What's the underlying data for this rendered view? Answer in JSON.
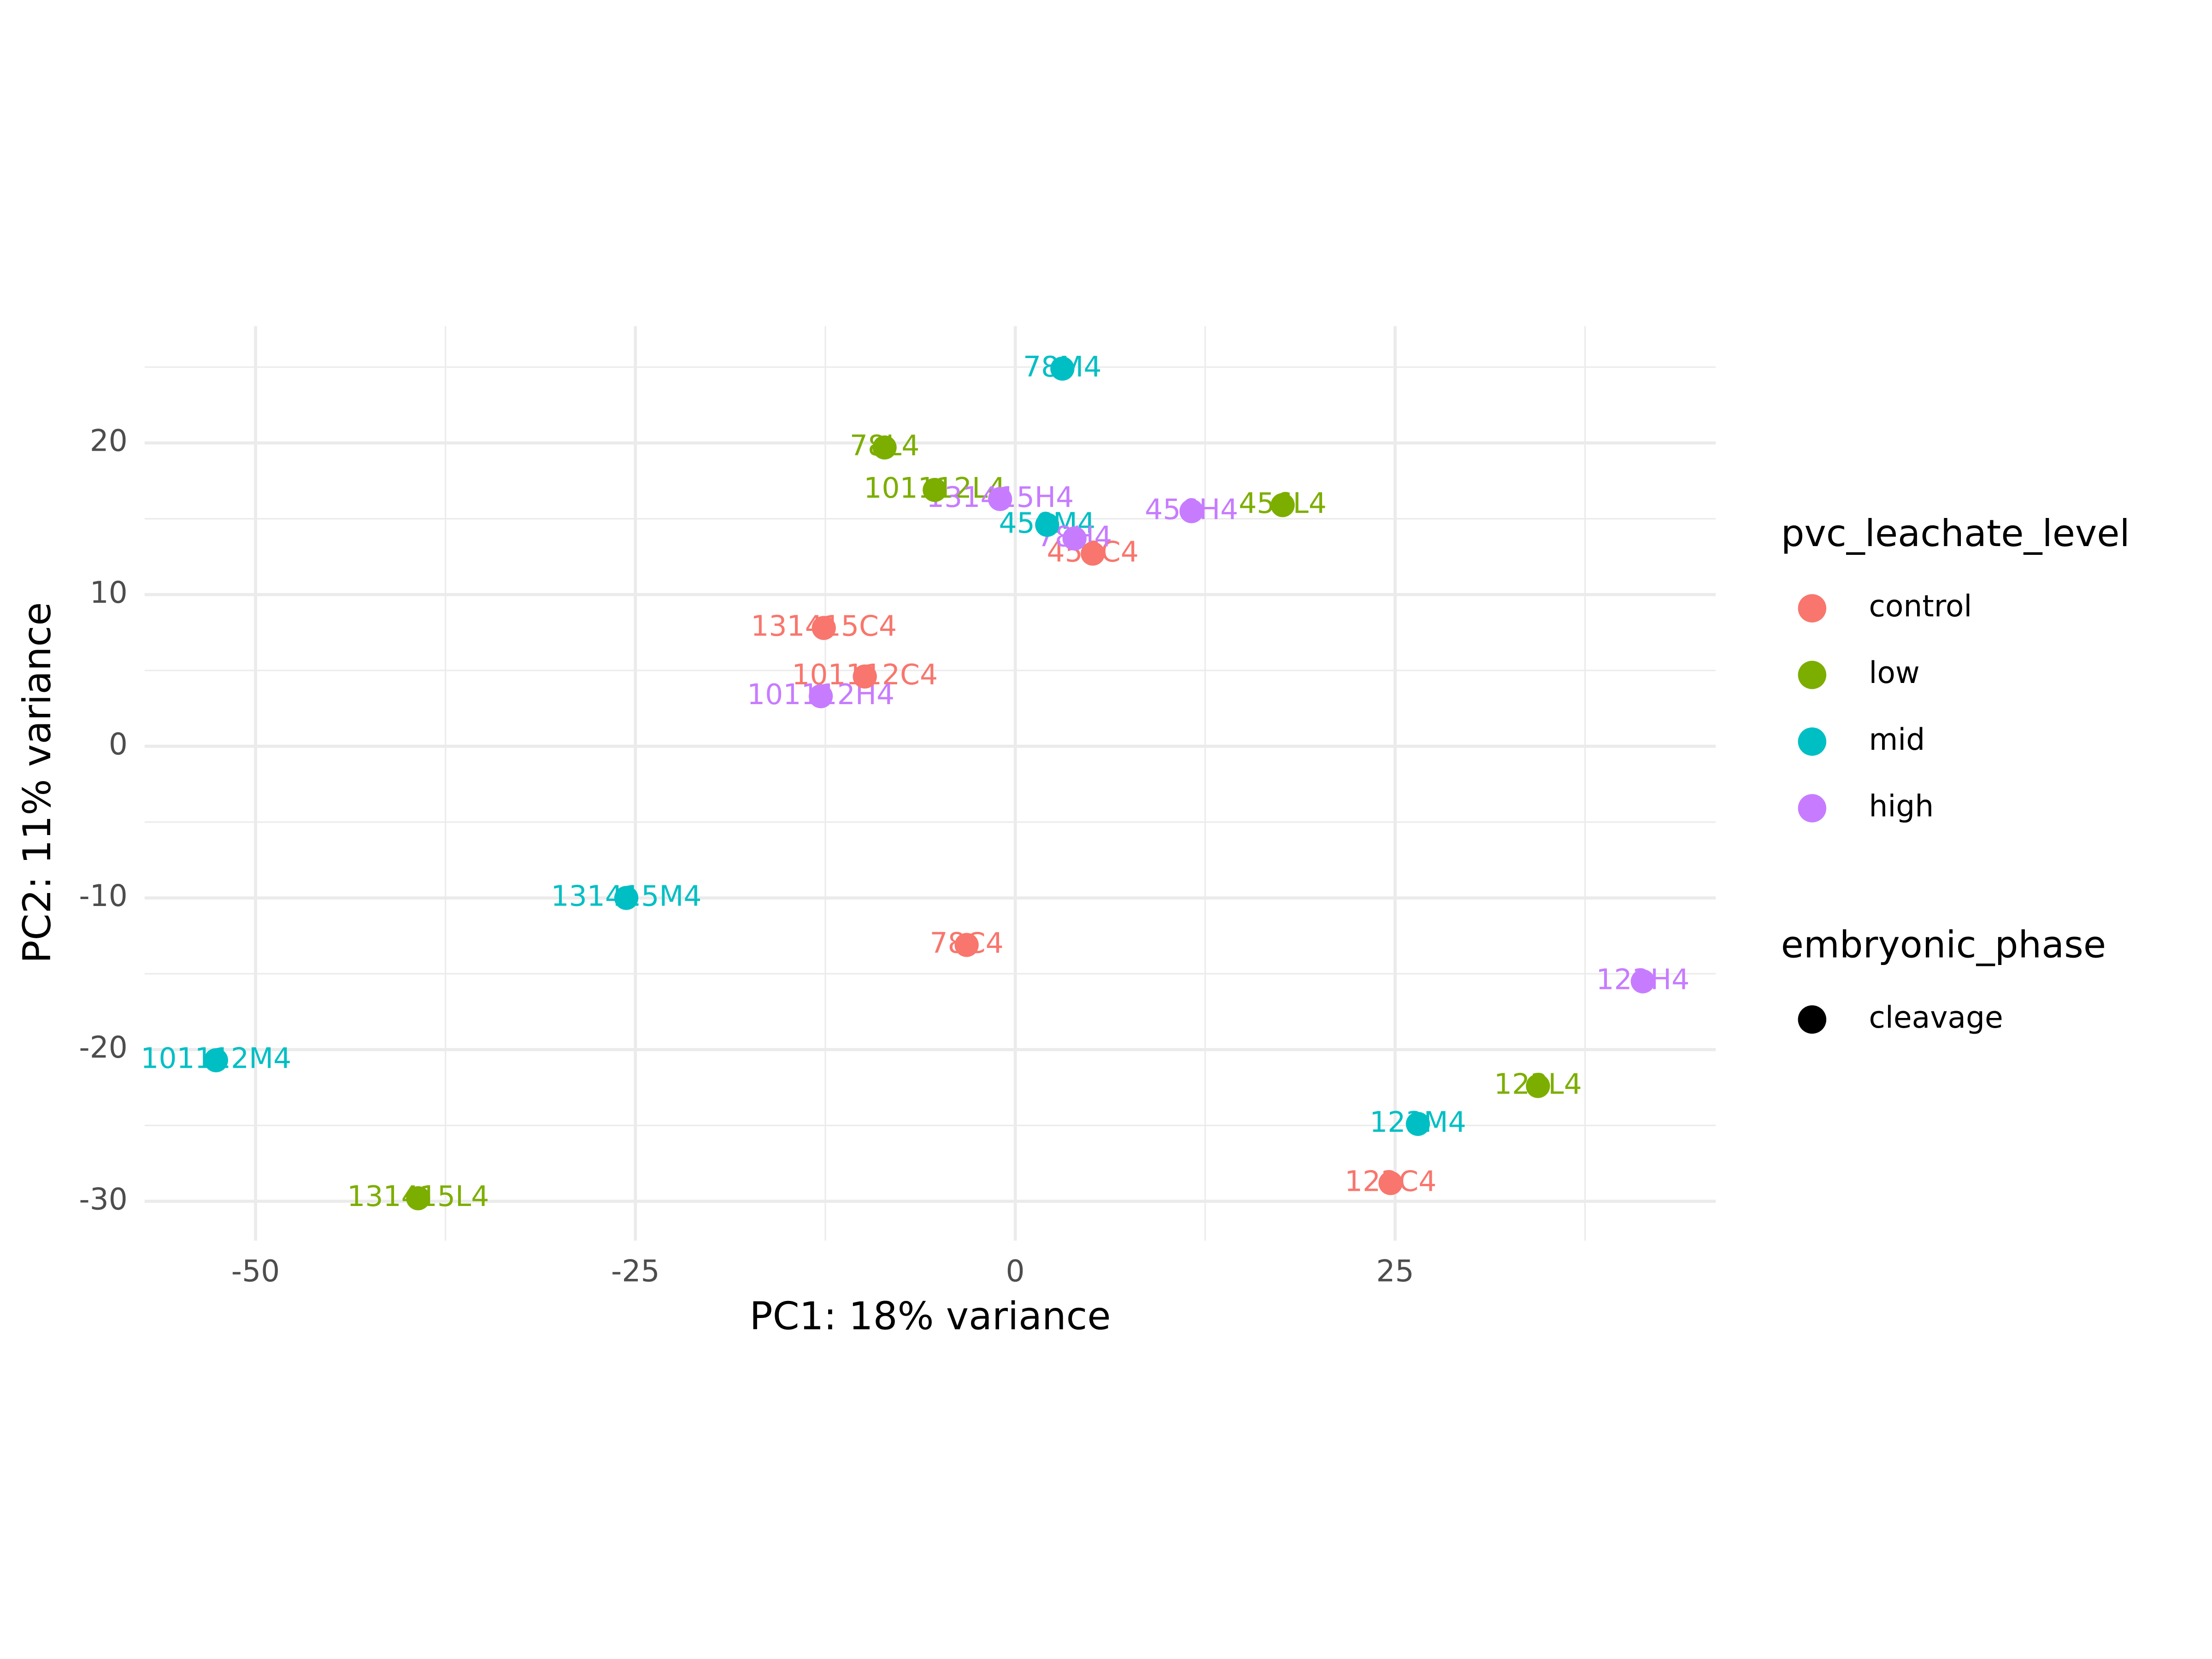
{
  "chart_data": {
    "type": "scatter",
    "x_label": "PC1: 18% variance",
    "y_label": "PC2: 11% variance",
    "xlim": [
      -57.3,
      46.1
    ],
    "ylim": [
      -32.6,
      27.7
    ],
    "xticks": [
      -50,
      -25,
      0,
      25
    ],
    "yticks": [
      -30,
      -20,
      -10,
      0,
      10,
      20
    ],
    "x_minor_grid": [
      -37.5,
      -12.5,
      12.5,
      37.5
    ],
    "y_minor_grid": [
      -25,
      -15,
      -5,
      5,
      15,
      25
    ],
    "grid": true,
    "legend_title": "pvc_leachate_level",
    "shape_legend": {
      "title": "embryonic_phase",
      "entries": [
        "cleavage"
      ],
      "color": "#000000"
    },
    "series": [
      {
        "name": "control",
        "color": "#F8766D",
        "x": [
          5.1,
          -12.6,
          -9.9,
          -3.2,
          24.7
        ],
        "values": [
          12.7,
          7.8,
          4.6,
          -13.1,
          -28.8
        ],
        "labels": [
          "456C4",
          "131415C4",
          "101112C4",
          "78C4",
          "123C4"
        ]
      },
      {
        "name": "low",
        "color": "#7CAE00",
        "x": [
          -8.6,
          -5.3,
          17.6,
          34.4,
          -39.3
        ],
        "values": [
          19.7,
          16.9,
          15.9,
          -22.4,
          -29.8
        ],
        "labels": [
          "78L4",
          "101112L4",
          "456L4",
          "123L4",
          "131415L4"
        ]
      },
      {
        "name": "mid",
        "color": "#00BFC4",
        "x": [
          3.1,
          2.1,
          -25.6,
          -52.6,
          26.5
        ],
        "values": [
          24.9,
          14.6,
          -10.0,
          -20.7,
          -24.9
        ],
        "labels": [
          "78M4",
          "456M4",
          "131415M4",
          "101112M4",
          "123M4"
        ]
      },
      {
        "name": "high",
        "color": "#C77CFF",
        "x": [
          -1.0,
          3.9,
          11.6,
          -12.8,
          41.3
        ],
        "values": [
          16.3,
          13.7,
          15.5,
          3.3,
          -15.5
        ],
        "labels": [
          "131415H4",
          "78H4",
          "456H4",
          "101112H4",
          "123H4"
        ]
      }
    ]
  }
}
